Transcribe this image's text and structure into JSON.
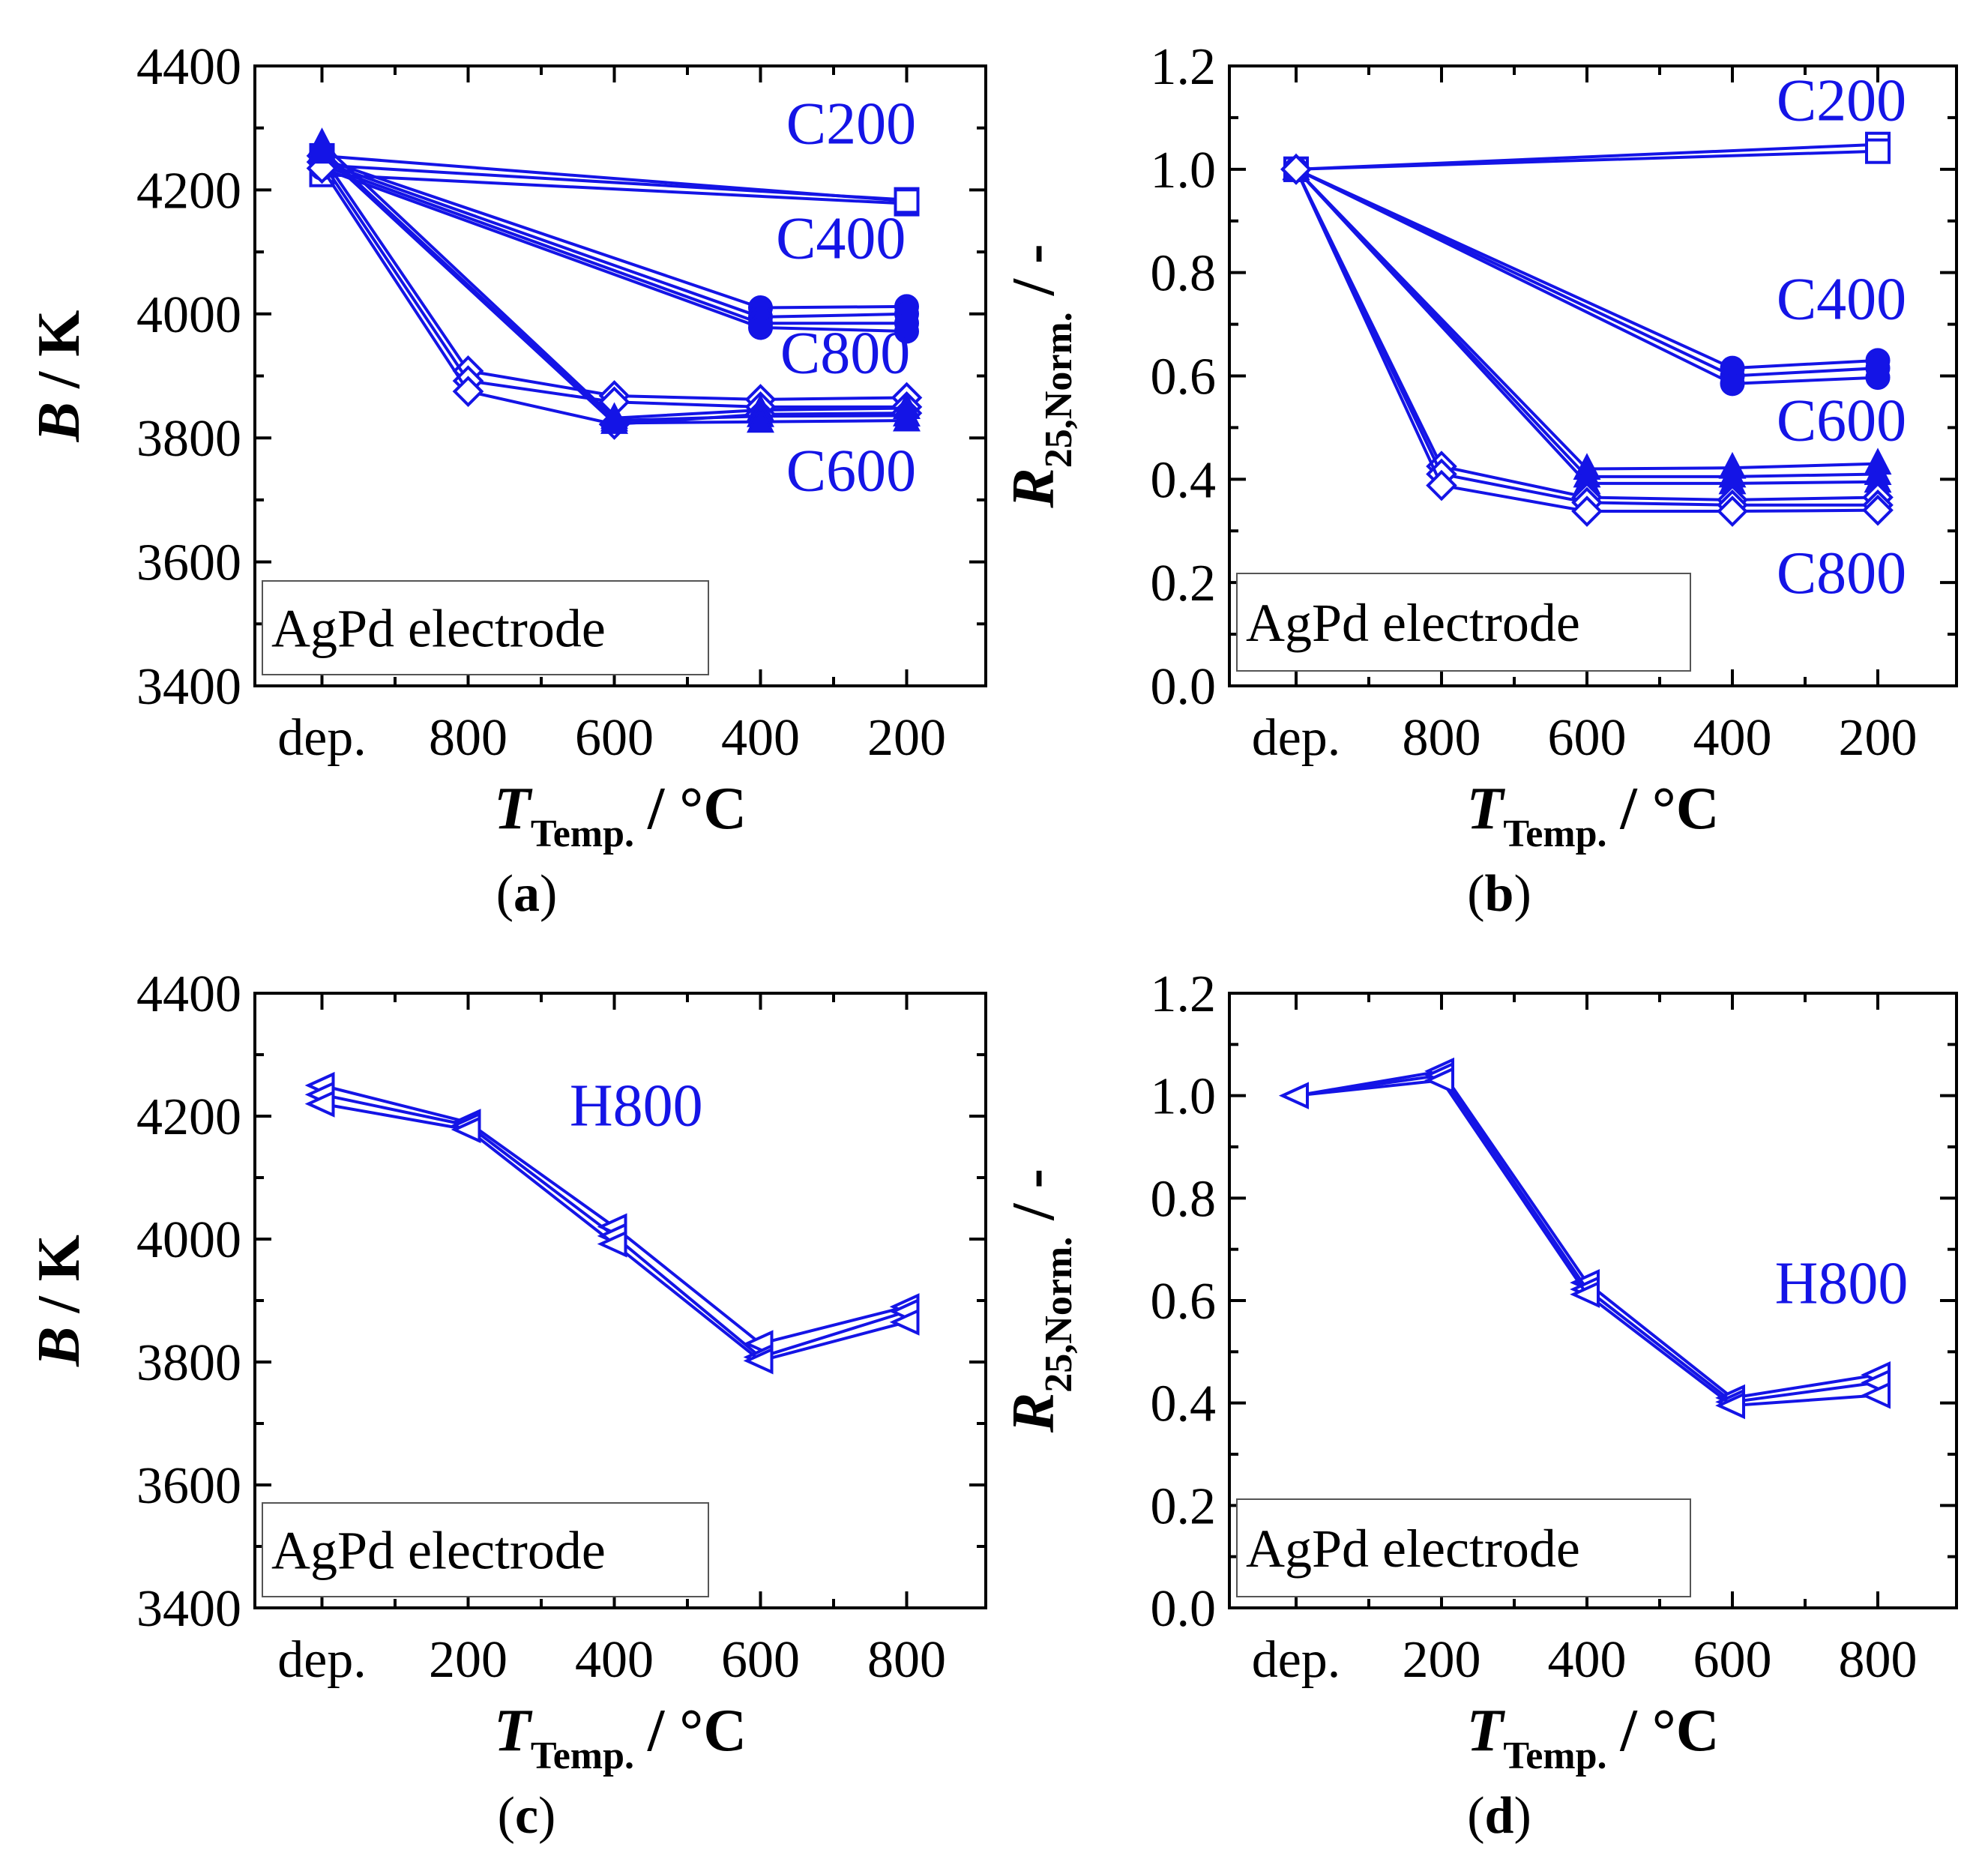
{
  "colors": {
    "series": "#1414e6",
    "axis": "#000000"
  },
  "chart_data": [
    {
      "id": "a",
      "type": "line",
      "caption": "a",
      "legend_box_text": "AgPd electrode",
      "xlabel_main": "T",
      "xlabel_sub": "Temp.",
      "xlabel_unit": "/ °C",
      "ylabel_main": "B",
      "ylabel_sub": "",
      "ylabel_unit": "/ K",
      "ylim": [
        3400,
        4400
      ],
      "yticks": [
        3400,
        3600,
        3800,
        4000,
        4200,
        4400
      ],
      "ytick_labels": [
        "3400",
        "3600",
        "3800",
        "4000",
        "4200",
        "4400"
      ],
      "categories": [
        "dep.",
        "800",
        "600",
        "400",
        "200"
      ],
      "series": [
        {
          "name": "C200",
          "marker": "open-square",
          "points": [
            [
              0,
              4240
            ],
            [
              4,
              4184
            ]
          ]
        },
        {
          "name": "C200",
          "marker": "open-square",
          "points": [
            [
              0,
              4225
            ],
            [
              4,
              4178
            ]
          ]
        },
        {
          "name": "C200",
          "marker": "open-square",
          "points": [
            [
              0,
              4255
            ],
            [
              4,
              4182
            ]
          ]
        },
        {
          "name": "C400",
          "marker": "filled-circle",
          "points": [
            [
              0,
              4250
            ],
            [
              3,
              4010
            ],
            [
              4,
              4012
            ]
          ]
        },
        {
          "name": "C400",
          "marker": "filled-circle",
          "points": [
            [
              0,
              4245
            ],
            [
              3,
              3995
            ],
            [
              4,
              4000
            ]
          ]
        },
        {
          "name": "C400",
          "marker": "filled-circle",
          "points": [
            [
              0,
              4240
            ],
            [
              3,
              3985
            ],
            [
              4,
              3985
            ]
          ]
        },
        {
          "name": "C400",
          "marker": "filled-circle",
          "points": [
            [
              0,
              4235
            ],
            [
              3,
              3978
            ],
            [
              4,
              3972
            ]
          ]
        },
        {
          "name": "C800",
          "marker": "open-diamond",
          "points": [
            [
              0,
              4255
            ],
            [
              1,
              3908
            ],
            [
              2,
              3868
            ],
            [
              3,
              3862
            ],
            [
              4,
              3865
            ]
          ]
        },
        {
          "name": "C800",
          "marker": "open-diamond",
          "points": [
            [
              0,
              4245
            ],
            [
              1,
              3892
            ],
            [
              2,
              3858
            ],
            [
              3,
              3850
            ],
            [
              4,
              3850
            ]
          ]
        },
        {
          "name": "C800",
          "marker": "open-diamond",
          "points": [
            [
              0,
              4235
            ],
            [
              1,
              3875
            ],
            [
              2,
              3822
            ],
            [
              3,
              3838
            ],
            [
              4,
              3840
            ]
          ]
        },
        {
          "name": "C600",
          "marker": "filled-triangle-up",
          "points": [
            [
              0,
              4275
            ],
            [
              2,
              3832
            ],
            [
              3,
              3845
            ],
            [
              4,
              3848
            ]
          ]
        },
        {
          "name": "C600",
          "marker": "filled-triangle-up",
          "points": [
            [
              0,
              4265
            ],
            [
              2,
              3828
            ],
            [
              3,
              3835
            ],
            [
              4,
              3836
            ]
          ]
        },
        {
          "name": "C600",
          "marker": "filled-triangle-up",
          "points": [
            [
              0,
              4260
            ],
            [
              2,
              3824
            ],
            [
              3,
              3826
            ],
            [
              4,
              3828
            ]
          ]
        }
      ],
      "series_labels": [
        {
          "text": "C200",
          "x": 3.62,
          "y": 4275
        },
        {
          "text": "C400",
          "x": 3.55,
          "y": 4090
        },
        {
          "text": "C800",
          "x": 3.58,
          "y": 3905
        },
        {
          "text": "C600",
          "x": 3.62,
          "y": 3715
        }
      ]
    },
    {
      "id": "b",
      "type": "line",
      "caption": "b",
      "legend_box_text": "AgPd electrode",
      "xlabel_main": "T",
      "xlabel_sub": "Temp.",
      "xlabel_unit": "/ °C",
      "ylabel_main": "R",
      "ylabel_sub": "25,Norm.",
      "ylabel_unit": "/ -",
      "ylim": [
        0.0,
        1.2
      ],
      "yticks": [
        0.0,
        0.2,
        0.4,
        0.6,
        0.8,
        1.0,
        1.2
      ],
      "ytick_labels": [
        "0.0",
        "0.2",
        "0.4",
        "0.6",
        "0.8",
        "1.0",
        "1.2"
      ],
      "categories": [
        "dep.",
        "800",
        "600",
        "400",
        "200"
      ],
      "series": [
        {
          "name": "C200",
          "marker": "open-square",
          "points": [
            [
              0,
              1.0
            ],
            [
              4,
              1.048
            ]
          ]
        },
        {
          "name": "C200",
          "marker": "open-square",
          "points": [
            [
              0,
              1.0
            ],
            [
              4,
              1.035
            ]
          ]
        },
        {
          "name": "C400",
          "marker": "filled-circle",
          "points": [
            [
              0,
              1.0
            ],
            [
              3,
              0.615
            ],
            [
              4,
              0.63
            ]
          ]
        },
        {
          "name": "C400",
          "marker": "filled-circle",
          "points": [
            [
              0,
              1.0
            ],
            [
              3,
              0.6
            ],
            [
              4,
              0.615
            ]
          ]
        },
        {
          "name": "C400",
          "marker": "filled-circle",
          "points": [
            [
              0,
              1.0
            ],
            [
              3,
              0.585
            ],
            [
              4,
              0.597
            ]
          ]
        },
        {
          "name": "C600",
          "marker": "filled-triangle-up",
          "points": [
            [
              0,
              1.0
            ],
            [
              2,
              0.42
            ],
            [
              3,
              0.422
            ],
            [
              4,
              0.43
            ]
          ]
        },
        {
          "name": "C600",
          "marker": "filled-triangle-up",
          "points": [
            [
              0,
              1.0
            ],
            [
              2,
              0.405
            ],
            [
              3,
              0.405
            ],
            [
              4,
              0.41
            ]
          ]
        },
        {
          "name": "C600",
          "marker": "filled-triangle-up",
          "points": [
            [
              0,
              1.0
            ],
            [
              2,
              0.392
            ],
            [
              3,
              0.392
            ],
            [
              4,
              0.395
            ]
          ]
        },
        {
          "name": "C800",
          "marker": "open-diamond",
          "points": [
            [
              0,
              1.0
            ],
            [
              1,
              0.425
            ],
            [
              2,
              0.365
            ],
            [
              3,
              0.36
            ],
            [
              4,
              0.365
            ]
          ]
        },
        {
          "name": "C800",
          "marker": "open-diamond",
          "points": [
            [
              0,
              1.0
            ],
            [
              1,
              0.41
            ],
            [
              2,
              0.355
            ],
            [
              3,
              0.35
            ],
            [
              4,
              0.35
            ]
          ]
        },
        {
          "name": "C800",
          "marker": "open-diamond",
          "points": [
            [
              0,
              1.0
            ],
            [
              1,
              0.388
            ],
            [
              2,
              0.338
            ],
            [
              3,
              0.338
            ],
            [
              4,
              0.34
            ]
          ]
        }
      ],
      "series_labels": [
        {
          "text": "C200",
          "x": 3.75,
          "y": 1.095
        },
        {
          "text": "C400",
          "x": 3.75,
          "y": 0.71
        },
        {
          "text": "C600",
          "x": 3.75,
          "y": 0.475
        },
        {
          "text": "C800",
          "x": 3.75,
          "y": 0.18
        }
      ]
    },
    {
      "id": "c",
      "type": "line",
      "caption": "c",
      "legend_box_text": "AgPd electrode",
      "xlabel_main": "T",
      "xlabel_sub": "Temp.",
      "xlabel_unit": "/ °C",
      "ylabel_main": "B",
      "ylabel_sub": "",
      "ylabel_unit": "/ K",
      "ylim": [
        3400,
        4400
      ],
      "yticks": [
        3400,
        3600,
        3800,
        4000,
        4200,
        4400
      ],
      "ytick_labels": [
        "3400",
        "3600",
        "3800",
        "4000",
        "4200",
        "4400"
      ],
      "categories": [
        "dep.",
        "200",
        "400",
        "600",
        "800"
      ],
      "series": [
        {
          "name": "H800",
          "marker": "open-triangle-left",
          "points": [
            [
              0,
              4250
            ],
            [
              1,
              4190
            ],
            [
              2,
              4020
            ],
            [
              3,
              3830
            ],
            [
              4,
              3890
            ]
          ]
        },
        {
          "name": "H800",
          "marker": "open-triangle-left",
          "points": [
            [
              0,
              4235
            ],
            [
              1,
              4185
            ],
            [
              2,
              4005
            ],
            [
              3,
              3808
            ],
            [
              4,
              3882
            ]
          ]
        },
        {
          "name": "H800",
          "marker": "open-triangle-left",
          "points": [
            [
              0,
              4220
            ],
            [
              1,
              4178
            ],
            [
              2,
              3992
            ],
            [
              3,
              3802
            ],
            [
              4,
              3865
            ]
          ]
        }
      ],
      "series_labels": [
        {
          "text": "H800",
          "x": 2.15,
          "y": 4185
        }
      ]
    },
    {
      "id": "d",
      "type": "line",
      "caption": "d",
      "legend_box_text": "AgPd electrode",
      "xlabel_main": "T",
      "xlabel_sub": "Temp.",
      "xlabel_unit": "/ °C",
      "ylabel_main": "R",
      "ylabel_sub": "25,Norm.",
      "ylabel_unit": "/ -",
      "ylim": [
        0.0,
        1.2
      ],
      "yticks": [
        0.0,
        0.2,
        0.4,
        0.6,
        0.8,
        1.0,
        1.2
      ],
      "ytick_labels": [
        "0.0",
        "0.2",
        "0.4",
        "0.6",
        "0.8",
        "1.0",
        "1.2"
      ],
      "categories": [
        "dep.",
        "200",
        "400",
        "600",
        "800"
      ],
      "series": [
        {
          "name": "H800",
          "marker": "open-triangle-left",
          "points": [
            [
              0,
              1.0
            ],
            [
              1,
              1.048
            ],
            [
              2,
              0.635
            ],
            [
              3,
              0.41
            ],
            [
              4,
              0.455
            ]
          ]
        },
        {
          "name": "H800",
          "marker": "open-triangle-left",
          "points": [
            [
              0,
              1.0
            ],
            [
              1,
              1.04
            ],
            [
              2,
              0.622
            ],
            [
              3,
              0.402
            ],
            [
              4,
              0.44
            ]
          ]
        },
        {
          "name": "H800",
          "marker": "open-triangle-left",
          "points": [
            [
              0,
              1.0
            ],
            [
              1,
              1.03
            ],
            [
              2,
              0.612
            ],
            [
              3,
              0.395
            ],
            [
              4,
              0.415
            ]
          ]
        }
      ],
      "series_labels": [
        {
          "text": "H800",
          "x": 3.75,
          "y": 0.595
        }
      ]
    }
  ]
}
